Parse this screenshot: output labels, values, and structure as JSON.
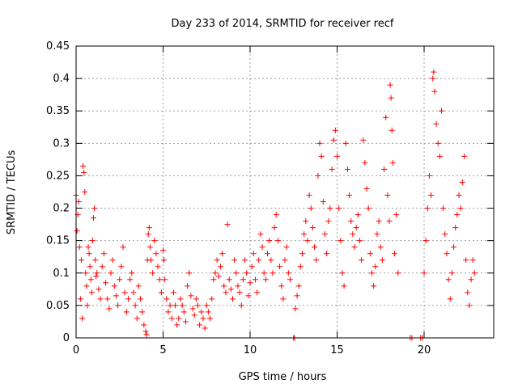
{
  "chart_data": {
    "type": "scatter",
    "title": "Day 233 of 2014, SRMTID for receiver recf",
    "xlabel": "GPS time / hours",
    "ylabel": "SRMTID / TECUs",
    "xlim": [
      0,
      24
    ],
    "ylim": [
      0,
      0.45
    ],
    "xticks": [
      0,
      5,
      10,
      15,
      20
    ],
    "xtick_labels": [
      "0",
      "5",
      "10",
      "15",
      "20"
    ],
    "yticks": [
      0,
      0.05,
      0.1,
      0.15,
      0.2,
      0.25,
      0.3,
      0.35,
      0.4,
      0.45
    ],
    "ytick_labels": [
      "0",
      "0.05",
      "0.1",
      "0.15",
      "0.2",
      "0.25",
      "0.3",
      "0.35",
      "0.4",
      "0.45"
    ],
    "grid": true,
    "marker": "+",
    "color": "#ff0000",
    "series": [
      {
        "name": "SRMTID",
        "points": [
          [
            0.0,
            0.22
          ],
          [
            0.05,
            0.165
          ],
          [
            0.1,
            0.19
          ],
          [
            0.15,
            0.21
          ],
          [
            0.2,
            0.14
          ],
          [
            0.25,
            0.06
          ],
          [
            0.3,
            0.12
          ],
          [
            0.35,
            0.03
          ],
          [
            0.4,
            0.265
          ],
          [
            0.45,
            0.255
          ],
          [
            0.5,
            0.225
          ],
          [
            0.55,
            0.1
          ],
          [
            0.6,
            0.08
          ],
          [
            0.65,
            0.05
          ],
          [
            0.7,
            0.14
          ],
          [
            0.75,
            0.13
          ],
          [
            0.8,
            0.11
          ],
          [
            0.85,
            0.09
          ],
          [
            0.9,
            0.07
          ],
          [
            0.95,
            0.15
          ],
          [
            1.0,
            0.185
          ],
          [
            1.05,
            0.2
          ],
          [
            1.1,
            0.12
          ],
          [
            1.15,
            0.095
          ],
          [
            1.2,
            0.1
          ],
          [
            1.3,
            0.075
          ],
          [
            1.4,
            0.06
          ],
          [
            1.5,
            0.11
          ],
          [
            1.6,
            0.13
          ],
          [
            1.7,
            0.085
          ],
          [
            1.8,
            0.06
          ],
          [
            1.9,
            0.045
          ],
          [
            2.0,
            0.1
          ],
          [
            2.1,
            0.12
          ],
          [
            2.2,
            0.08
          ],
          [
            2.3,
            0.065
          ],
          [
            2.4,
            0.05
          ],
          [
            2.5,
            0.09
          ],
          [
            2.6,
            0.11
          ],
          [
            2.7,
            0.14
          ],
          [
            2.8,
            0.07
          ],
          [
            2.9,
            0.04
          ],
          [
            3.0,
            0.06
          ],
          [
            3.1,
            0.09
          ],
          [
            3.2,
            0.1
          ],
          [
            3.3,
            0.07
          ],
          [
            3.4,
            0.05
          ],
          [
            3.5,
            0.03
          ],
          [
            3.6,
            0.08
          ],
          [
            3.7,
            0.06
          ],
          [
            3.8,
            0.04
          ],
          [
            3.9,
            0.02
          ],
          [
            4.0,
            0.01
          ],
          [
            4.05,
            0.005
          ],
          [
            4.1,
            0.12
          ],
          [
            4.15,
            0.16
          ],
          [
            4.2,
            0.17
          ],
          [
            4.25,
            0.14
          ],
          [
            4.3,
            0.12
          ],
          [
            4.4,
            0.1
          ],
          [
            4.5,
            0.15
          ],
          [
            4.6,
            0.13
          ],
          [
            4.7,
            0.11
          ],
          [
            4.8,
            0.09
          ],
          [
            4.9,
            0.07
          ],
          [
            5.0,
            0.135
          ],
          [
            5.05,
            0.12
          ],
          [
            5.1,
            0.09
          ],
          [
            5.2,
            0.06
          ],
          [
            5.3,
            0.04
          ],
          [
            5.4,
            0.05
          ],
          [
            5.5,
            0.03
          ],
          [
            5.6,
            0.07
          ],
          [
            5.7,
            0.05
          ],
          [
            5.8,
            0.02
          ],
          [
            5.9,
            0.03
          ],
          [
            6.0,
            0.06
          ],
          [
            6.1,
            0.05
          ],
          [
            6.2,
            0.04
          ],
          [
            6.3,
            0.025
          ],
          [
            6.4,
            0.08
          ],
          [
            6.5,
            0.1
          ],
          [
            6.6,
            0.065
          ],
          [
            6.7,
            0.045
          ],
          [
            6.8,
            0.035
          ],
          [
            6.9,
            0.06
          ],
          [
            7.0,
            0.05
          ],
          [
            7.1,
            0.02
          ],
          [
            7.2,
            0.04
          ],
          [
            7.3,
            0.03
          ],
          [
            7.4,
            0.015
          ],
          [
            7.5,
            0.05
          ],
          [
            7.6,
            0.04
          ],
          [
            7.7,
            0.03
          ],
          [
            7.8,
            0.06
          ],
          [
            7.9,
            0.09
          ],
          [
            8.0,
            0.1
          ],
          [
            8.1,
            0.12
          ],
          [
            8.2,
            0.095
          ],
          [
            8.3,
            0.11
          ],
          [
            8.4,
            0.13
          ],
          [
            8.5,
            0.08
          ],
          [
            8.6,
            0.07
          ],
          [
            8.7,
            0.175
          ],
          [
            8.8,
            0.09
          ],
          [
            8.9,
            0.075
          ],
          [
            9.0,
            0.06
          ],
          [
            9.1,
            0.12
          ],
          [
            9.2,
            0.1
          ],
          [
            9.3,
            0.08
          ],
          [
            9.4,
            0.07
          ],
          [
            9.5,
            0.05
          ],
          [
            9.6,
            0.09
          ],
          [
            9.7,
            0.12
          ],
          [
            9.8,
            0.1
          ],
          [
            9.9,
            0.065
          ],
          [
            10.0,
            0.085
          ],
          [
            10.1,
            0.11
          ],
          [
            10.2,
            0.13
          ],
          [
            10.3,
            0.09
          ],
          [
            10.4,
            0.07
          ],
          [
            10.5,
            0.12
          ],
          [
            10.6,
            0.16
          ],
          [
            10.7,
            0.14
          ],
          [
            10.8,
            0.1
          ],
          [
            10.9,
            0.09
          ],
          [
            11.0,
            0.13
          ],
          [
            11.1,
            0.15
          ],
          [
            11.2,
            0.12
          ],
          [
            11.3,
            0.1
          ],
          [
            11.4,
            0.17
          ],
          [
            11.5,
            0.19
          ],
          [
            11.6,
            0.15
          ],
          [
            11.7,
            0.11
          ],
          [
            11.8,
            0.08
          ],
          [
            11.9,
            0.06
          ],
          [
            12.0,
            0.12
          ],
          [
            12.1,
            0.14
          ],
          [
            12.2,
            0.1
          ],
          [
            12.3,
            0.09
          ],
          [
            12.5,
            0.0
          ],
          [
            12.55,
            0.0
          ],
          [
            12.6,
            0.045
          ],
          [
            12.7,
            0.065
          ],
          [
            12.8,
            0.08
          ],
          [
            12.9,
            0.11
          ],
          [
            13.0,
            0.13
          ],
          [
            13.1,
            0.16
          ],
          [
            13.2,
            0.18
          ],
          [
            13.3,
            0.15
          ],
          [
            13.4,
            0.22
          ],
          [
            13.5,
            0.2
          ],
          [
            13.6,
            0.17
          ],
          [
            13.7,
            0.14
          ],
          [
            13.8,
            0.12
          ],
          [
            13.9,
            0.25
          ],
          [
            14.0,
            0.3
          ],
          [
            14.1,
            0.28
          ],
          [
            14.2,
            0.21
          ],
          [
            14.3,
            0.16
          ],
          [
            14.4,
            0.13
          ],
          [
            14.5,
            0.18
          ],
          [
            14.6,
            0.2
          ],
          [
            14.7,
            0.26
          ],
          [
            14.8,
            0.305
          ],
          [
            14.9,
            0.32
          ],
          [
            15.0,
            0.28
          ],
          [
            15.1,
            0.2
          ],
          [
            15.2,
            0.15
          ],
          [
            15.3,
            0.1
          ],
          [
            15.4,
            0.08
          ],
          [
            15.5,
            0.3
          ],
          [
            15.6,
            0.26
          ],
          [
            15.7,
            0.22
          ],
          [
            15.8,
            0.18
          ],
          [
            15.9,
            0.16
          ],
          [
            16.0,
            0.14
          ],
          [
            16.1,
            0.17
          ],
          [
            16.2,
            0.19
          ],
          [
            16.3,
            0.15
          ],
          [
            16.4,
            0.12
          ],
          [
            16.5,
            0.305
          ],
          [
            16.6,
            0.27
          ],
          [
            16.7,
            0.23
          ],
          [
            16.8,
            0.2
          ],
          [
            16.9,
            0.13
          ],
          [
            17.0,
            0.1
          ],
          [
            17.1,
            0.08
          ],
          [
            17.2,
            0.11
          ],
          [
            17.3,
            0.16
          ],
          [
            17.4,
            0.18
          ],
          [
            17.5,
            0.14
          ],
          [
            17.6,
            0.12
          ],
          [
            17.7,
            0.26
          ],
          [
            17.8,
            0.34
          ],
          [
            17.9,
            0.22
          ],
          [
            18.0,
            0.18
          ],
          [
            18.05,
            0.39
          ],
          [
            18.1,
            0.37
          ],
          [
            18.15,
            0.32
          ],
          [
            18.2,
            0.27
          ],
          [
            18.3,
            0.13
          ],
          [
            18.4,
            0.19
          ],
          [
            18.5,
            0.1
          ],
          [
            19.2,
            0.0
          ],
          [
            19.3,
            0.0
          ],
          [
            19.8,
            0.0
          ],
          [
            19.9,
            0.0
          ],
          [
            20.0,
            0.1
          ],
          [
            20.1,
            0.15
          ],
          [
            20.2,
            0.2
          ],
          [
            20.3,
            0.25
          ],
          [
            20.4,
            0.22
          ],
          [
            20.5,
            0.4
          ],
          [
            20.55,
            0.41
          ],
          [
            20.6,
            0.38
          ],
          [
            20.7,
            0.33
          ],
          [
            20.8,
            0.3
          ],
          [
            20.9,
            0.28
          ],
          [
            21.0,
            0.35
          ],
          [
            21.1,
            0.2
          ],
          [
            21.2,
            0.16
          ],
          [
            21.3,
            0.13
          ],
          [
            21.4,
            0.09
          ],
          [
            21.5,
            0.06
          ],
          [
            21.6,
            0.1
          ],
          [
            21.7,
            0.14
          ],
          [
            21.8,
            0.17
          ],
          [
            21.9,
            0.19
          ],
          [
            22.0,
            0.22
          ],
          [
            22.1,
            0.2
          ],
          [
            22.2,
            0.24
          ],
          [
            22.3,
            0.28
          ],
          [
            22.4,
            0.12
          ],
          [
            22.5,
            0.07
          ],
          [
            22.6,
            0.05
          ],
          [
            22.7,
            0.09
          ],
          [
            22.8,
            0.12
          ],
          [
            22.9,
            0.1
          ]
        ]
      }
    ]
  }
}
